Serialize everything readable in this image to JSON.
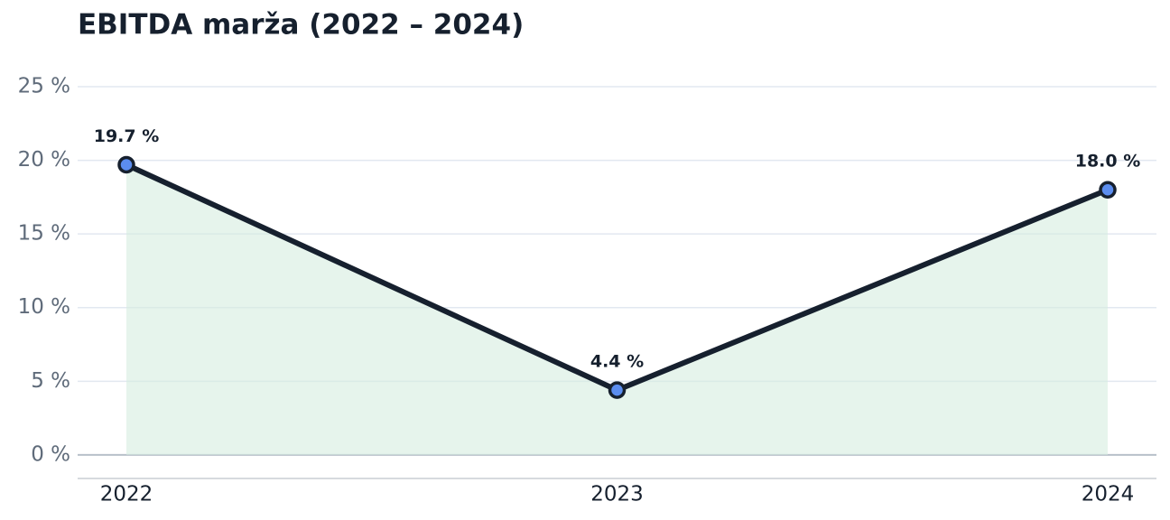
{
  "chart_data": {
    "type": "line",
    "title": "EBITDA marža (2022 – 2024)",
    "categories": [
      "2022",
      "2023",
      "2024"
    ],
    "series": [
      {
        "color": "#16202e",
        "values": [
          19.7,
          4.4,
          18.0
        ],
        "value_labels": [
          "19.7 %",
          "4.4 %",
          "18.0 %"
        ]
      }
    ],
    "area_color": "#d5ece0",
    "marker_color": "#5b8def",
    "ylim": [
      -1.6,
      27
    ],
    "yticks": [
      {
        "value": 0,
        "label": "0 %"
      },
      {
        "value": 5,
        "label": "5 %"
      },
      {
        "value": 10,
        "label": "10 %"
      },
      {
        "value": 15,
        "label": "15 %"
      },
      {
        "value": 20,
        "label": "20 %"
      },
      {
        "value": 25,
        "label": "25 %"
      }
    ],
    "grid": true
  }
}
